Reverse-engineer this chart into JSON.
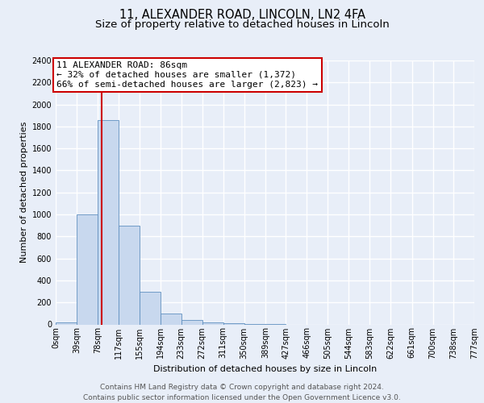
{
  "title": "11, ALEXANDER ROAD, LINCOLN, LN2 4FA",
  "subtitle": "Size of property relative to detached houses in Lincoln",
  "xlabel": "Distribution of detached houses by size in Lincoln",
  "ylabel": "Number of detached properties",
  "footer_line1": "Contains HM Land Registry data © Crown copyright and database right 2024.",
  "footer_line2": "Contains public sector information licensed under the Open Government Licence v3.0.",
  "bin_edges": [
    0,
    39,
    78,
    117,
    155,
    194,
    233,
    272,
    311,
    350,
    389,
    427,
    466,
    505,
    544,
    583,
    622,
    661,
    700,
    738,
    777
  ],
  "bar_heights": [
    20,
    1000,
    1860,
    900,
    300,
    100,
    40,
    20,
    10,
    5,
    2,
    0,
    0,
    0,
    0,
    0,
    0,
    0,
    0,
    0
  ],
  "bar_color": "#c8d8ee",
  "bar_edge_color": "#6090c0",
  "property_line_x": 86,
  "property_line_color": "#cc0000",
  "annotation_title": "11 ALEXANDER ROAD: 86sqm",
  "annotation_line1": "← 32% of detached houses are smaller (1,372)",
  "annotation_line2": "66% of semi-detached houses are larger (2,823) →",
  "annotation_box_color": "#ffffff",
  "annotation_box_edge": "#cc0000",
  "ylim": [
    0,
    2400
  ],
  "yticks": [
    0,
    200,
    400,
    600,
    800,
    1000,
    1200,
    1400,
    1600,
    1800,
    2000,
    2200,
    2400
  ],
  "xlim": [
    0,
    777
  ],
  "xtick_labels": [
    "0sqm",
    "39sqm",
    "78sqm",
    "117sqm",
    "155sqm",
    "194sqm",
    "233sqm",
    "272sqm",
    "311sqm",
    "350sqm",
    "389sqm",
    "427sqm",
    "466sqm",
    "505sqm",
    "544sqm",
    "583sqm",
    "622sqm",
    "661sqm",
    "700sqm",
    "738sqm",
    "777sqm"
  ],
  "bg_color": "#e8eef8",
  "plot_bg_color": "#e8eef8",
  "grid_color": "#ffffff",
  "title_fontsize": 10.5,
  "subtitle_fontsize": 9.5,
  "axis_label_fontsize": 8,
  "tick_fontsize": 7,
  "annotation_fontsize": 8,
  "footer_fontsize": 6.5
}
